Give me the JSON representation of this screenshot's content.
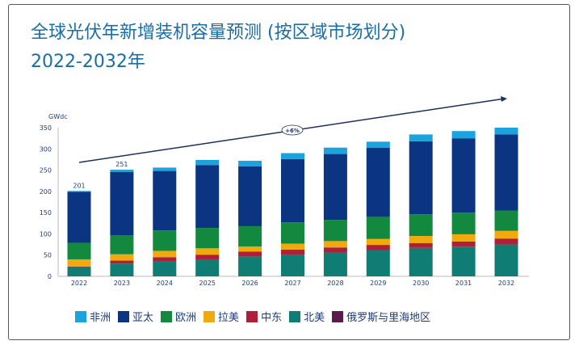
{
  "title_line1": "全球光伏年新增装机容量预测 (按区域市场划分)",
  "title_line2": "2022-2032年",
  "chart_data": {
    "type": "bar",
    "stacked": true,
    "ylabel": "GWdc",
    "ylim": [
      0,
      350
    ],
    "yticks": [
      0,
      50,
      100,
      150,
      200,
      250,
      300,
      350
    ],
    "categories": [
      "2022",
      "2023",
      "2024",
      "2025",
      "2026",
      "2027",
      "2028",
      "2029",
      "2030",
      "2031",
      "2032"
    ],
    "series": [
      {
        "name": "北美",
        "color": "#0f7d73",
        "values": [
          22,
          30,
          35,
          40,
          46,
          50,
          56,
          61,
          67,
          70,
          75
        ]
      },
      {
        "name": "中东",
        "color": "#b01f3a",
        "values": [
          1,
          7,
          10,
          11,
          12,
          13,
          12,
          13,
          11,
          12,
          14
        ]
      },
      {
        "name": "拉美",
        "color": "#f0aa0e",
        "values": [
          17,
          15,
          15,
          15,
          12,
          14,
          15,
          14,
          17,
          17,
          18
        ]
      },
      {
        "name": "欧洲",
        "color": "#13893f",
        "values": [
          39,
          45,
          48,
          48,
          48,
          50,
          50,
          52,
          51,
          51,
          48
        ]
      },
      {
        "name": "亚太",
        "color": "#0b3580",
        "values": [
          120,
          149,
          140,
          148,
          141,
          149,
          155,
          163,
          172,
          175,
          179
        ]
      },
      {
        "name": "非洲",
        "color": "#1aa3dc",
        "values": [
          2,
          5,
          8,
          12,
          13,
          14,
          15,
          14,
          16,
          17,
          16
        ]
      },
      {
        "name": "俄罗斯与里海地区",
        "color": "#5a1a4a",
        "values": [
          0,
          0,
          0,
          0,
          0,
          0,
          0,
          0,
          0,
          0,
          0
        ]
      }
    ],
    "data_labels": [
      {
        "category": "2022",
        "text": "201"
      },
      {
        "category": "2023",
        "text": "251"
      }
    ],
    "annotation": "+6%",
    "legend_order": [
      "非洲",
      "亚太",
      "欧洲",
      "拉美",
      "中东",
      "北美",
      "俄罗斯与里海地区"
    ],
    "legend_position": "bottom",
    "grid": false
  }
}
